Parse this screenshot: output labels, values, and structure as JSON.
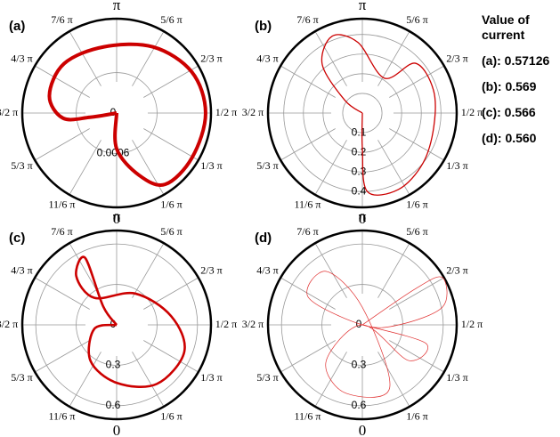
{
  "chart_data": [
    {
      "type": "polar",
      "panel_label": "(a)",
      "color": "#cc0000",
      "theta": [
        0,
        0,
        0.11,
        0.19,
        0.33,
        0.5,
        0.66,
        0.84,
        1.06,
        1.26,
        1.42,
        1.53,
        1.55,
        0
      ],
      "r": [
        0,
        0.00053,
        0.00098,
        0.00128,
        0.0013,
        0.00132,
        0.00127,
        0.00112,
        0.001,
        0.00107,
        0.00103,
        0.0008,
        0.0004,
        0
      ],
      "rlim": [
        0,
        0.0014
      ],
      "rticks": [
        0,
        0.0006
      ],
      "thetaticks": [
        {
          "value": 0,
          "label": "0"
        },
        {
          "value": 0.1667,
          "label": "1/6 π"
        },
        {
          "value": 0.3333,
          "label": "1/3 π"
        },
        {
          "value": 0.5,
          "label": "1/2 π"
        },
        {
          "value": 0.6667,
          "label": "2/3 π"
        },
        {
          "value": 0.8333,
          "label": "5/6 π"
        },
        {
          "value": 1,
          "label": "π"
        },
        {
          "value": 1.1667,
          "label": "7/6 π"
        },
        {
          "value": 1.3333,
          "label": "4/3 π"
        },
        {
          "value": 1.5,
          "label": "3/2 π"
        },
        {
          "value": 1.6667,
          "label": "5/3 π"
        },
        {
          "value": 1.8333,
          "label": "11/6 π"
        }
      ]
    },
    {
      "type": "polar",
      "panel_label": "(b)",
      "color": "#cc0000",
      "theta": [
        0,
        0,
        0.02,
        0.14,
        0.28,
        0.44,
        0.6,
        0.74,
        0.82,
        1.02,
        1.12,
        1.22,
        1.3,
        0
      ],
      "r": [
        0,
        0.18,
        0.4,
        0.43,
        0.4,
        0.37,
        0.38,
        0.37,
        0.21,
        0.36,
        0.42,
        0.32,
        0.11,
        0
      ],
      "rlim": [
        0,
        0.48
      ],
      "rticks": [
        0.1,
        0.2,
        0.3,
        0.4
      ],
      "thetaticks": [
        {
          "value": 0,
          "label": "0"
        },
        {
          "value": 0.1667,
          "label": "1/6 π"
        },
        {
          "value": 0.3333,
          "label": "1/3 π"
        },
        {
          "value": 0.5,
          "label": "1/2 π"
        },
        {
          "value": 0.6667,
          "label": "2/3 π"
        },
        {
          "value": 0.8333,
          "label": "5/6 π"
        },
        {
          "value": 1,
          "label": "π"
        },
        {
          "value": 1.1667,
          "label": "7/6 π"
        },
        {
          "value": 1.3333,
          "label": "4/3 π"
        },
        {
          "value": 1.5,
          "label": "3/2 π"
        },
        {
          "value": 1.6667,
          "label": "5/3 π"
        },
        {
          "value": 1.8333,
          "label": "11/6 π"
        }
      ]
    },
    {
      "type": "polar",
      "panel_label": "(c)",
      "color": "#cc0000",
      "theta": [
        0,
        1.2,
        1.14,
        1.22,
        1.22,
        0.83,
        0.55,
        0.38,
        0.19,
        0,
        1.8,
        1.56,
        0
      ],
      "r": [
        0,
        0.17,
        0.55,
        0.47,
        0.26,
        0.27,
        0.41,
        0.54,
        0.53,
        0.43,
        0.33,
        0.17,
        0
      ],
      "rlim": [
        0,
        0.7
      ],
      "rticks": [
        0,
        0.3,
        0.6
      ],
      "thetaticks": [
        {
          "value": 0,
          "label": "0"
        },
        {
          "value": 0.1667,
          "label": "1/6 π"
        },
        {
          "value": 0.3333,
          "label": "1/3 π"
        },
        {
          "value": 0.5,
          "label": "1/2 π"
        },
        {
          "value": 0.6667,
          "label": "2/3 π"
        },
        {
          "value": 0.8333,
          "label": "5/6 π"
        },
        {
          "value": 1,
          "label": "π"
        },
        {
          "value": 1.1667,
          "label": "7/6 π"
        },
        {
          "value": 1.3333,
          "label": "4/3 π"
        },
        {
          "value": 1.5,
          "label": "3/2 π"
        },
        {
          "value": 1.6667,
          "label": "5/3 π"
        },
        {
          "value": 1.8333,
          "label": "11/6 π"
        }
      ]
    },
    {
      "type": "polar",
      "panel_label": "(d)",
      "color": "#e03030",
      "theta": [
        0,
        0.69,
        0.67,
        0.57,
        0.5,
        0,
        1.35,
        1.19,
        1,
        0.13,
        1.92,
        1.75,
        0,
        0.29,
        0.41,
        0
      ],
      "r": [
        0,
        0.48,
        0.69,
        0.61,
        0.27,
        0,
        0.45,
        0.48,
        0.13,
        0.51,
        0.52,
        0.38,
        0,
        0.43,
        0.49,
        0
      ],
      "rlim": [
        0,
        0.7
      ],
      "rticks": [
        0,
        0.3,
        0.6
      ],
      "thetaticks": [
        {
          "value": 0,
          "label": "0"
        },
        {
          "value": 0.1667,
          "label": "1/6 π"
        },
        {
          "value": 0.3333,
          "label": "1/3 π"
        },
        {
          "value": 0.5,
          "label": "1/2 π"
        },
        {
          "value": 0.6667,
          "label": "2/3 π"
        },
        {
          "value": 0.8333,
          "label": "5/6 π"
        },
        {
          "value": 1,
          "label": "π"
        },
        {
          "value": 1.1667,
          "label": "7/6 π"
        },
        {
          "value": 1.3333,
          "label": "4/3 π"
        },
        {
          "value": 1.5,
          "label": "3/2 π"
        },
        {
          "value": 1.6667,
          "label": "5/3 π"
        },
        {
          "value": 1.8333,
          "label": "11/6 π"
        }
      ]
    }
  ],
  "side_note": {
    "title": "Value of current",
    "items": [
      {
        "label": "(a):",
        "value": "0.57126"
      },
      {
        "label": "(b):",
        "value": "0.569"
      },
      {
        "label": "(c):",
        "value": "0.566"
      },
      {
        "label": "(d):",
        "value": "0.560"
      }
    ]
  }
}
